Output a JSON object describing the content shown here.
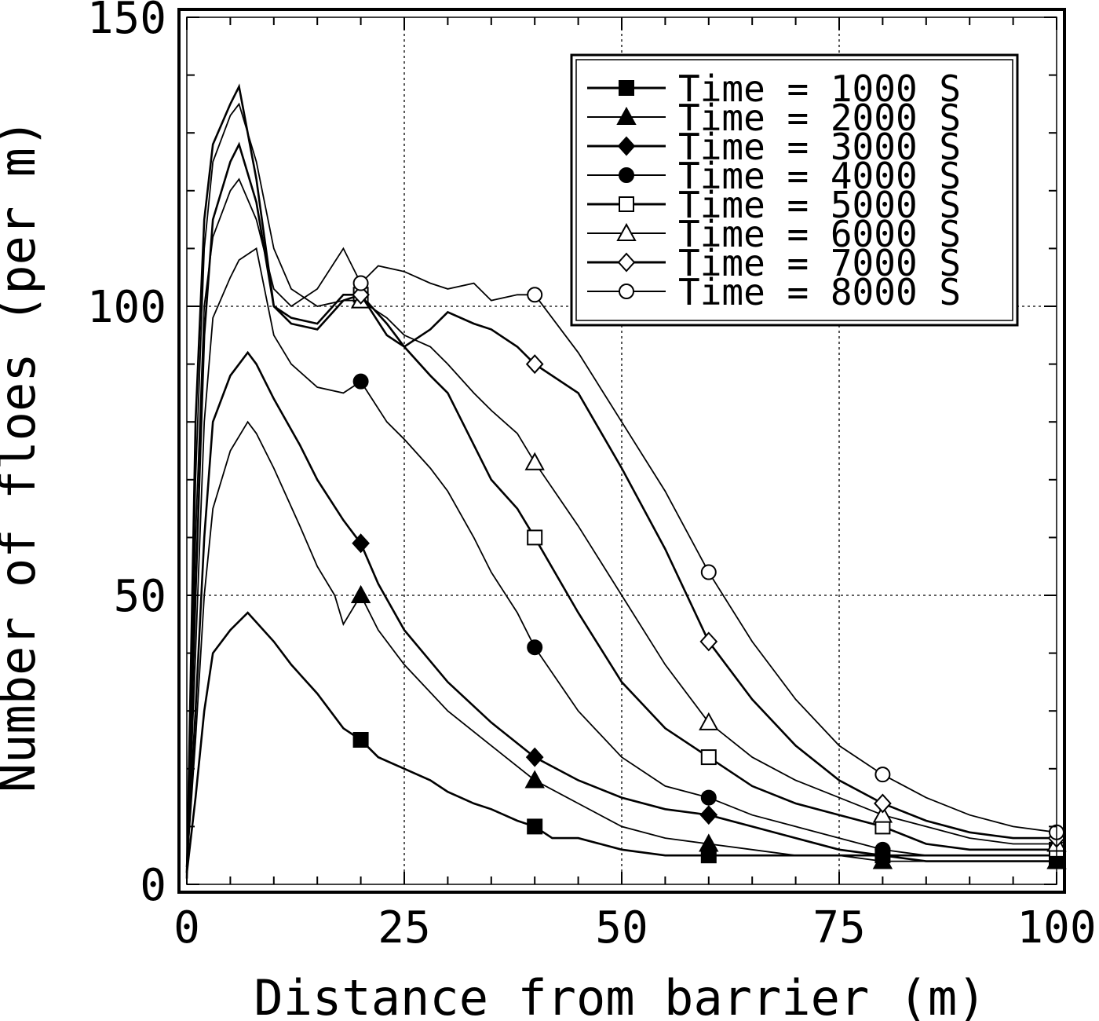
{
  "chart_data": {
    "type": "line",
    "title": "",
    "xlabel": "Distance from barrier (m)",
    "ylabel": "Number of floes (per m)",
    "xlim": [
      0,
      100
    ],
    "ylim": [
      0,
      150
    ],
    "xticks": [
      0,
      25,
      50,
      75,
      100
    ],
    "yticks": [
      0,
      50,
      100,
      150
    ],
    "xtick_labels": [
      "0",
      "25",
      "50",
      "75",
      "100"
    ],
    "ytick_labels": [
      "0",
      "50",
      "100",
      "150"
    ],
    "grid": true,
    "legend_position": "top-right",
    "series": [
      {
        "name": "Time = 1000 S",
        "marker": "square-filled",
        "x": [
          0,
          1,
          2,
          3,
          5,
          7,
          10,
          12,
          15,
          18,
          20,
          22,
          25,
          28,
          30,
          33,
          35,
          38,
          40,
          42,
          45,
          50,
          55,
          60,
          65,
          70,
          75,
          80,
          85,
          90,
          95,
          100
        ],
        "y": [
          2,
          15,
          30,
          40,
          44,
          47,
          42,
          38,
          33,
          27,
          25,
          22,
          20,
          18,
          16,
          14,
          13,
          11,
          10,
          8,
          8,
          6,
          5,
          5,
          5,
          5,
          5,
          5,
          4,
          4,
          4,
          4
        ]
      },
      {
        "name": "Time = 2000 S",
        "marker": "triangle-filled",
        "x": [
          0,
          1,
          2,
          3,
          5,
          7,
          8,
          10,
          13,
          15,
          17,
          18,
          20,
          22,
          25,
          30,
          35,
          40,
          45,
          50,
          55,
          60,
          65,
          70,
          75,
          80,
          85,
          90,
          95,
          100
        ],
        "y": [
          3,
          25,
          50,
          65,
          75,
          80,
          78,
          72,
          62,
          55,
          50,
          45,
          50,
          44,
          38,
          30,
          24,
          18,
          14,
          10,
          8,
          7,
          6,
          5,
          5,
          4,
          4,
          4,
          4,
          4
        ]
      },
      {
        "name": "Time = 3000 S",
        "marker": "diamond-filled",
        "x": [
          0,
          1,
          2,
          3,
          5,
          7,
          8,
          10,
          13,
          15,
          18,
          20,
          22,
          25,
          30,
          35,
          40,
          45,
          50,
          55,
          60,
          65,
          70,
          75,
          80,
          85,
          90,
          95,
          100
        ],
        "y": [
          3,
          30,
          60,
          80,
          88,
          92,
          90,
          84,
          76,
          70,
          63,
          59,
          52,
          44,
          35,
          28,
          22,
          18,
          15,
          13,
          12,
          10,
          8,
          6,
          5,
          5,
          5,
          5,
          5
        ]
      },
      {
        "name": "Time = 4000 S",
        "marker": "circle-filled",
        "x": [
          0,
          1,
          2,
          3,
          5,
          6,
          8,
          10,
          12,
          15,
          18,
          20,
          23,
          25,
          28,
          30,
          33,
          35,
          38,
          40,
          45,
          50,
          55,
          60,
          65,
          70,
          75,
          80,
          85,
          90,
          95,
          100
        ],
        "y": [
          2,
          40,
          80,
          98,
          105,
          108,
          110,
          95,
          90,
          86,
          85,
          87,
          80,
          77,
          72,
          68,
          60,
          54,
          47,
          41,
          30,
          22,
          17,
          15,
          12,
          10,
          8,
          6,
          5,
          5,
          5,
          5
        ]
      },
      {
        "name": "Time = 5000 S",
        "marker": "square-open",
        "x": [
          0,
          1,
          2,
          3,
          5,
          6,
          8,
          10,
          12,
          15,
          18,
          20,
          23,
          25,
          28,
          30,
          33,
          35,
          38,
          40,
          45,
          50,
          55,
          60,
          65,
          70,
          75,
          80,
          85,
          90,
          95,
          100
        ],
        "y": [
          2,
          50,
          95,
          115,
          125,
          128,
          118,
          100,
          98,
          97,
          102,
          102,
          97,
          93,
          88,
          85,
          76,
          70,
          65,
          60,
          47,
          35,
          27,
          22,
          17,
          14,
          12,
          10,
          7,
          6,
          6,
          6
        ]
      },
      {
        "name": "Time = 6000 S",
        "marker": "triangle-open",
        "x": [
          0,
          1,
          2,
          3,
          5,
          6,
          8,
          10,
          12,
          15,
          18,
          20,
          23,
          25,
          28,
          30,
          33,
          35,
          38,
          40,
          45,
          50,
          55,
          60,
          65,
          70,
          75,
          80,
          85,
          90,
          95,
          100
        ],
        "y": [
          1,
          70,
          110,
          125,
          133,
          135,
          125,
          110,
          103,
          100,
          101,
          101,
          98,
          95,
          93,
          90,
          85,
          82,
          78,
          73,
          62,
          50,
          38,
          28,
          22,
          18,
          15,
          12,
          10,
          8,
          7,
          7
        ]
      },
      {
        "name": "Time = 7000 S",
        "marker": "diamond-open",
        "x": [
          0,
          1,
          2,
          3,
          5,
          6,
          8,
          10,
          12,
          15,
          18,
          20,
          23,
          25,
          28,
          30,
          33,
          35,
          38,
          40,
          45,
          50,
          55,
          60,
          65,
          70,
          75,
          80,
          85,
          90,
          95,
          100
        ],
        "y": [
          1,
          80,
          115,
          128,
          135,
          138,
          122,
          100,
          97,
          96,
          101,
          102,
          95,
          93,
          96,
          99,
          97,
          96,
          93,
          90,
          85,
          72,
          58,
          42,
          32,
          24,
          18,
          14,
          11,
          9,
          8,
          8
        ]
      },
      {
        "name": "Time = 8000 S",
        "marker": "circle-open",
        "x": [
          0,
          1,
          2,
          3,
          5,
          6,
          8,
          10,
          12,
          15,
          18,
          20,
          22,
          25,
          28,
          30,
          33,
          35,
          38,
          40,
          45,
          50,
          55,
          60,
          65,
          70,
          75,
          80,
          85,
          90,
          95,
          100
        ],
        "y": [
          1,
          60,
          100,
          112,
          120,
          122,
          115,
          103,
          100,
          103,
          110,
          104,
          107,
          106,
          104,
          103,
          104,
          101,
          102,
          102,
          92,
          80,
          68,
          54,
          42,
          32,
          24,
          19,
          15,
          12,
          10,
          9
        ]
      }
    ]
  }
}
